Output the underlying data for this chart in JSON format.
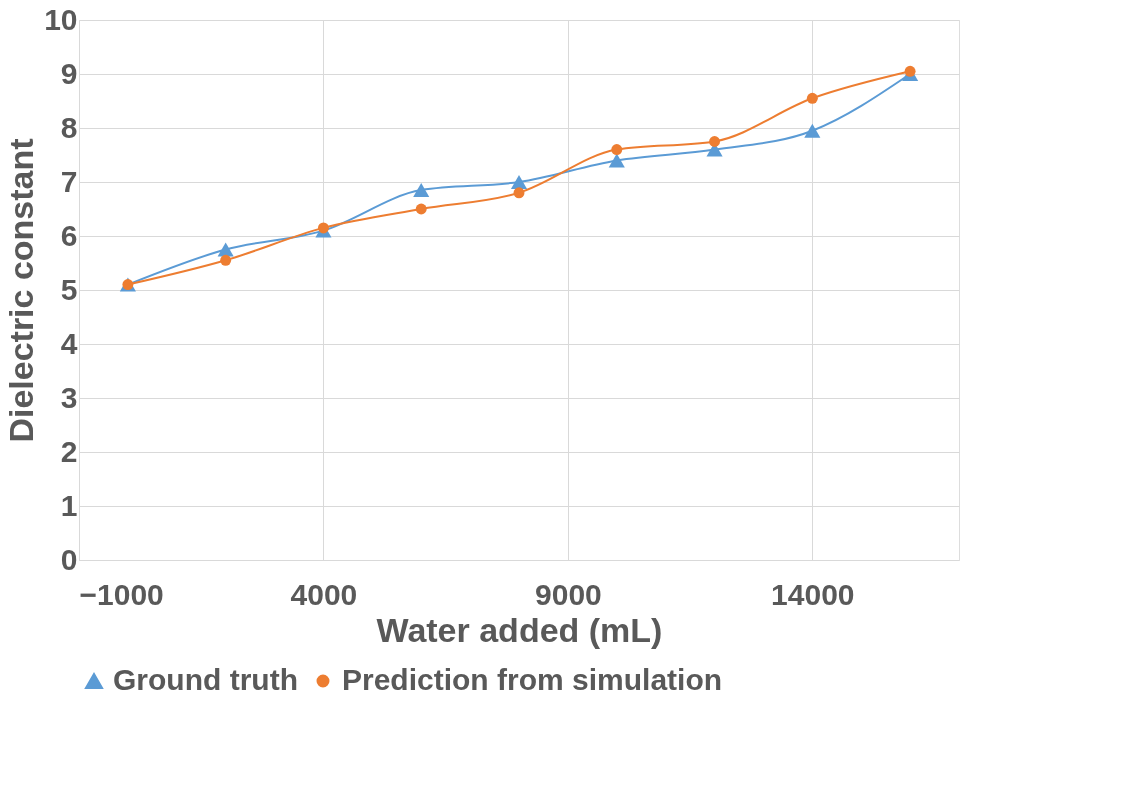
{
  "chart_data": {
    "type": "line",
    "xlabel": "Water added (mL)",
    "ylabel": "Dielectric constant",
    "x": [
      0,
      2000,
      4000,
      6000,
      8000,
      10000,
      12000,
      14000,
      16000
    ],
    "series": [
      {
        "name": "Ground truth",
        "color": "#5b9bd5",
        "marker": "triangle",
        "values": [
          5.1,
          5.75,
          6.1,
          6.85,
          7.0,
          7.4,
          7.6,
          7.95,
          9.0
        ]
      },
      {
        "name": "Prediction from simulation",
        "color": "#ed7d31",
        "marker": "circle",
        "values": [
          5.1,
          5.55,
          6.15,
          6.5,
          6.8,
          7.6,
          7.75,
          8.55,
          9.05
        ]
      }
    ],
    "xlim": [
      -1000,
      17000
    ],
    "xticks": [
      -1000,
      4000,
      9000,
      14000
    ],
    "ylim": [
      0,
      10
    ],
    "yticks": [
      0,
      1,
      2,
      3,
      4,
      5,
      6,
      7,
      8,
      9,
      10
    ],
    "grid": true,
    "legend": "bottom",
    "line_style": "solid"
  }
}
